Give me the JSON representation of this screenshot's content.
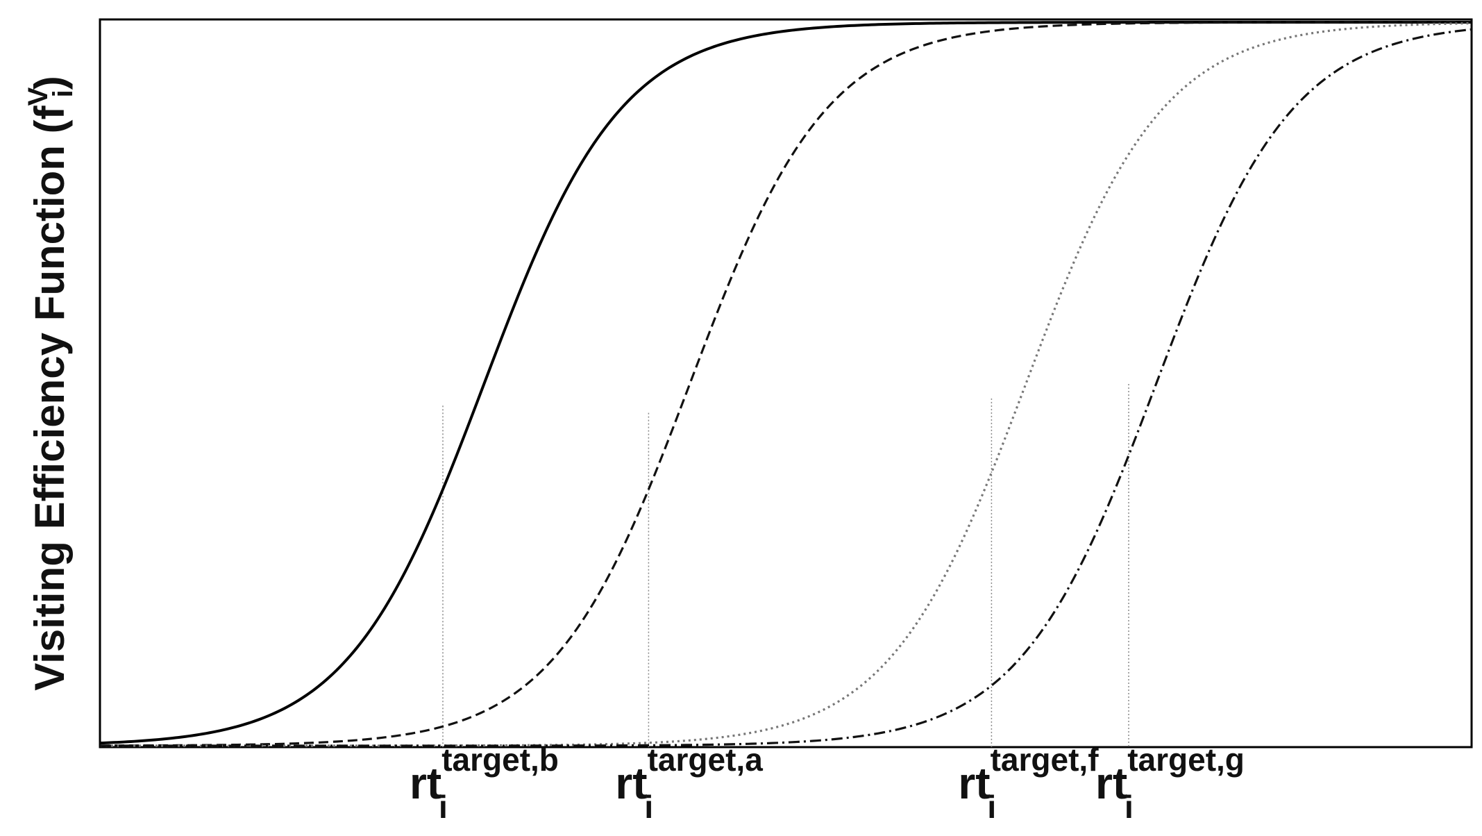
{
  "chart_data": {
    "type": "line",
    "ylabel": {
      "text": "Visiting Efficiency Function (f",
      "sup": "V",
      "sub": "i",
      "close": ")"
    },
    "xlabel": "",
    "title": "",
    "xlim": [
      0,
      100
    ],
    "ylim": [
      0,
      1
    ],
    "grid": false,
    "x_ticks": [
      {
        "value": 25,
        "main": "rt",
        "sub": "i",
        "sup": "target,b"
      },
      {
        "value": 40,
        "main": "rt",
        "sub": "i",
        "sup": "target,a"
      },
      {
        "value": 65,
        "main": "rt",
        "sub": "i",
        "sup": "target,f"
      },
      {
        "value": 75,
        "main": "rt",
        "sub": "i",
        "sup": "target,g"
      }
    ],
    "series": [
      {
        "midpoint": 28,
        "steepness": 0.2,
        "style": "solid",
        "color": "#000000",
        "marker": {
          "x": 25,
          "y": 0.47
        }
      },
      {
        "midpoint": 43,
        "steepness": 0.2,
        "style": "dashed",
        "color": "#111111",
        "marker": {
          "x": 40,
          "y": 0.46
        }
      },
      {
        "midpoint": 67.5,
        "steepness": 0.2,
        "style": "dotted",
        "color": "#777777",
        "marker": {
          "x": 65,
          "y": 0.48
        }
      },
      {
        "midpoint": 77,
        "steepness": 0.2,
        "style": "dashdot",
        "color": "#111111",
        "marker": {
          "x": 75,
          "y": 0.5
        }
      }
    ]
  }
}
